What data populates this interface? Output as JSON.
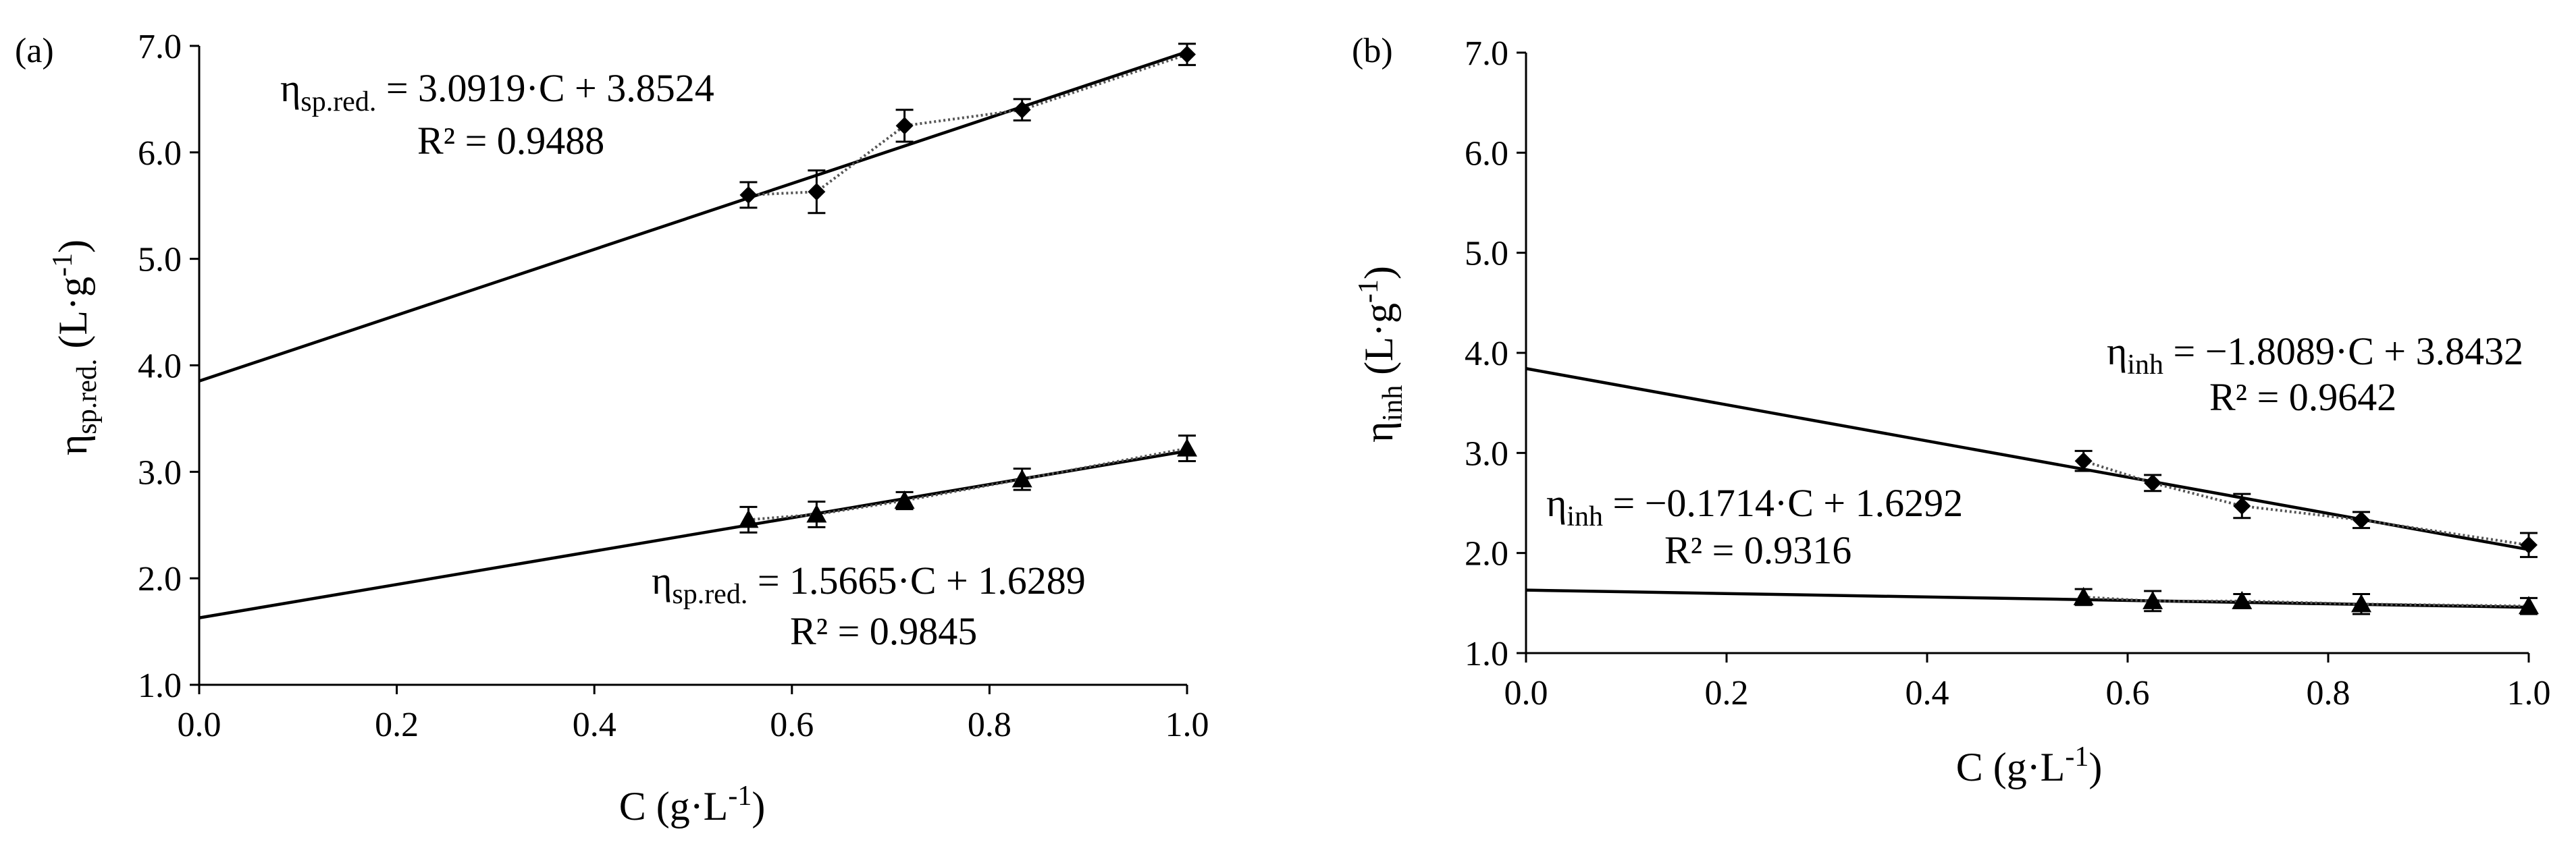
{
  "chart_data": [
    {
      "type": "scatter",
      "panel_label": "(a)",
      "xlabel_base": "C (g·L",
      "xlabel_sup": "-1",
      "xlabel_end": ")",
      "ylabel_eta": "η",
      "ylabel_sub": "sp.red.",
      "ylabel_mid": " (L·g",
      "ylabel_sup": "-1",
      "ylabel_end": ")",
      "xlim": [
        0.0,
        1.0
      ],
      "ylim": [
        1.0,
        7.0
      ],
      "xticks": [
        "0.0",
        "0.2",
        "0.4",
        "0.6",
        "0.8",
        "1.0"
      ],
      "yticks": [
        "1.0",
        "2.0",
        "3.0",
        "4.0",
        "5.0",
        "6.0",
        "7.0"
      ],
      "series": [
        {
          "name": "diamond series",
          "marker": "diamond",
          "x": [
            0.556,
            0.625,
            0.714,
            0.833,
            1.0
          ],
          "y": [
            5.6,
            5.63,
            6.25,
            6.4,
            6.92
          ],
          "error": [
            0.12,
            0.2,
            0.15,
            0.1,
            0.1
          ],
          "fit": {
            "slope": 3.0919,
            "intercept": 3.8524
          },
          "equation": {
            "eta": "η",
            "sub": "sp.red.",
            "text": " = 3.0919·C + 3.8524",
            "r2": "R² = 0.9488"
          }
        },
        {
          "name": "triangle series",
          "marker": "triangle",
          "x": [
            0.556,
            0.625,
            0.714,
            0.833,
            1.0
          ],
          "y": [
            2.55,
            2.6,
            2.73,
            2.93,
            3.22
          ],
          "error": [
            0.12,
            0.12,
            0.08,
            0.1,
            0.12
          ],
          "fit": {
            "slope": 1.5665,
            "intercept": 1.6289
          },
          "equation": {
            "eta": "η",
            "sub": "sp.red.",
            "text": " = 1.5665·C + 1.6289",
            "r2": "R² = 0.9845"
          }
        }
      ]
    },
    {
      "type": "scatter",
      "panel_label": "(b)",
      "xlabel_base": "C (g·L",
      "xlabel_sup": "-1",
      "xlabel_end": ")",
      "ylabel_eta": "η",
      "ylabel_sub": "inh",
      "ylabel_mid": " (L·g",
      "ylabel_sup": "-1",
      "ylabel_end": ")",
      "xlim": [
        0.0,
        1.0
      ],
      "ylim": [
        1.0,
        7.0
      ],
      "xticks": [
        "0.0",
        "0.2",
        "0.4",
        "0.6",
        "0.8",
        "1.0"
      ],
      "yticks": [
        "1.0",
        "2.0",
        "3.0",
        "4.0",
        "5.0",
        "6.0",
        "7.0"
      ],
      "series": [
        {
          "name": "diamond series",
          "marker": "diamond",
          "x": [
            0.556,
            0.625,
            0.714,
            0.833,
            1.0
          ],
          "y": [
            2.92,
            2.7,
            2.47,
            2.33,
            2.08
          ],
          "error": [
            0.1,
            0.08,
            0.12,
            0.08,
            0.12
          ],
          "fit": {
            "slope": -1.8089,
            "intercept": 3.8432
          },
          "equation": {
            "eta": "η",
            "sub": "inh",
            "text": " = −1.8089·C + 3.8432",
            "r2": "R² = 0.9642"
          }
        },
        {
          "name": "triangle series",
          "marker": "triangle",
          "x": [
            0.556,
            0.625,
            0.714,
            0.833,
            1.0
          ],
          "y": [
            1.56,
            1.52,
            1.52,
            1.49,
            1.47
          ],
          "error": [
            0.08,
            0.1,
            0.07,
            0.1,
            0.08
          ],
          "fit": {
            "slope": -0.1714,
            "intercept": 1.6292
          },
          "equation": {
            "eta": "η",
            "sub": "inh",
            "text": " = −0.1714·C + 1.6292",
            "r2": "R² = 0.9316"
          }
        }
      ]
    }
  ]
}
